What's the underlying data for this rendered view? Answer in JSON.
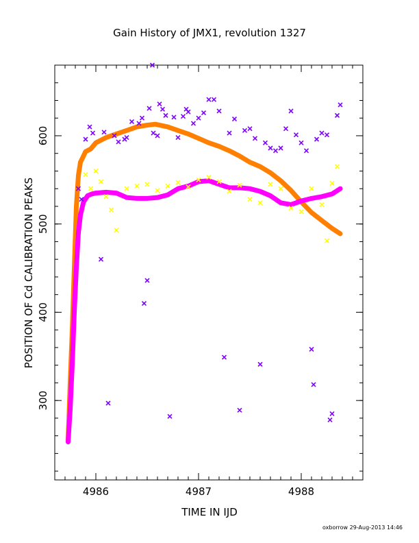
{
  "chart_data": {
    "type": "scatter",
    "title": "Gain History of JMX1, revolution 1327",
    "xlabel": "TIME IN IJD",
    "ylabel": "POSITION OF Cd CALIBRATION PEAKS",
    "xlim": [
      4985.6,
      4988.6
    ],
    "ylim": [
      210,
      680
    ],
    "x_ticks": [
      4986,
      4987,
      4988
    ],
    "x_tick_labels": [
      "4986",
      "4987",
      "4988"
    ],
    "y_ticks": [
      300,
      400,
      500,
      600
    ],
    "y_tick_labels": [
      "300",
      "400",
      "500",
      "600"
    ],
    "grid": false,
    "legend": "none",
    "series": [
      {
        "color": "#ff8000",
        "marker": "line",
        "points": [
          [
            4985.73,
            255
          ],
          [
            4985.75,
            320
          ],
          [
            4985.77,
            380
          ],
          [
            4985.79,
            450
          ],
          [
            4985.81,
            520
          ],
          [
            4985.83,
            555
          ],
          [
            4985.85,
            570
          ],
          [
            4985.9,
            582
          ],
          [
            4985.95,
            585
          ],
          [
            4986.0,
            592
          ],
          [
            4986.1,
            598
          ],
          [
            4986.2,
            602
          ],
          [
            4986.3,
            606
          ],
          [
            4986.4,
            610
          ],
          [
            4986.5,
            612
          ],
          [
            4986.58,
            613
          ],
          [
            4986.7,
            610
          ],
          [
            4986.8,
            606
          ],
          [
            4986.9,
            602
          ],
          [
            4987.0,
            597
          ],
          [
            4987.1,
            592
          ],
          [
            4987.2,
            588
          ],
          [
            4987.3,
            583
          ],
          [
            4987.4,
            577
          ],
          [
            4987.5,
            570
          ],
          [
            4987.6,
            565
          ],
          [
            4987.7,
            558
          ],
          [
            4987.8,
            549
          ],
          [
            4987.9,
            538
          ],
          [
            4988.0,
            525
          ],
          [
            4988.1,
            513
          ],
          [
            4988.2,
            504
          ],
          [
            4988.3,
            495
          ],
          [
            4988.38,
            489
          ]
        ]
      },
      {
        "color": "#ff00ff",
        "marker": "line",
        "points": [
          [
            4985.73,
            253
          ],
          [
            4985.75,
            290
          ],
          [
            4985.77,
            340
          ],
          [
            4985.79,
            400
          ],
          [
            4985.81,
            450
          ],
          [
            4985.83,
            490
          ],
          [
            4985.85,
            510
          ],
          [
            4985.88,
            525
          ],
          [
            4985.92,
            532
          ],
          [
            4985.96,
            534
          ],
          [
            4986.0,
            535
          ],
          [
            4986.1,
            536
          ],
          [
            4986.2,
            535
          ],
          [
            4986.3,
            530
          ],
          [
            4986.4,
            529
          ],
          [
            4986.5,
            529
          ],
          [
            4986.6,
            530
          ],
          [
            4986.7,
            533
          ],
          [
            4986.8,
            540
          ],
          [
            4986.9,
            543
          ],
          [
            4987.0,
            548
          ],
          [
            4987.1,
            549
          ],
          [
            4987.2,
            545
          ],
          [
            4987.3,
            541
          ],
          [
            4987.4,
            541
          ],
          [
            4987.5,
            540
          ],
          [
            4987.6,
            537
          ],
          [
            4987.7,
            532
          ],
          [
            4987.8,
            524
          ],
          [
            4987.9,
            522
          ],
          [
            4988.0,
            526
          ],
          [
            4988.1,
            529
          ],
          [
            4988.2,
            531
          ],
          [
            4988.3,
            534
          ],
          [
            4988.38,
            540
          ]
        ]
      },
      {
        "color": "#7f00ff",
        "marker": "x",
        "points": [
          [
            4985.83,
            540
          ],
          [
            4985.86,
            528
          ],
          [
            4985.9,
            596
          ],
          [
            4985.94,
            610
          ],
          [
            4985.97,
            603
          ],
          [
            4986.05,
            460
          ],
          [
            4986.08,
            604
          ],
          [
            4986.12,
            297
          ],
          [
            4986.18,
            600
          ],
          [
            4986.22,
            593
          ],
          [
            4986.28,
            596
          ],
          [
            4986.3,
            598
          ],
          [
            4986.35,
            616
          ],
          [
            4986.42,
            614
          ],
          [
            4986.45,
            620
          ],
          [
            4986.47,
            410
          ],
          [
            4986.5,
            436
          ],
          [
            4986.52,
            631
          ],
          [
            4986.56,
            603
          ],
          [
            4986.6,
            600
          ],
          [
            4986.62,
            636
          ],
          [
            4986.65,
            630
          ],
          [
            4986.68,
            623
          ],
          [
            4986.72,
            282
          ],
          [
            4986.76,
            621
          ],
          [
            4986.8,
            598
          ],
          [
            4986.85,
            622
          ],
          [
            4986.88,
            630
          ],
          [
            4986.9,
            627
          ],
          [
            4986.95,
            614
          ],
          [
            4987.0,
            620
          ],
          [
            4987.05,
            626
          ],
          [
            4987.1,
            641
          ],
          [
            4987.15,
            641
          ],
          [
            4987.2,
            628
          ],
          [
            4987.25,
            349
          ],
          [
            4987.3,
            603
          ],
          [
            4987.35,
            619
          ],
          [
            4987.4,
            289
          ],
          [
            4987.45,
            606
          ],
          [
            4987.5,
            608
          ],
          [
            4987.55,
            597
          ],
          [
            4987.6,
            341
          ],
          [
            4987.65,
            592
          ],
          [
            4987.7,
            586
          ],
          [
            4987.75,
            583
          ],
          [
            4987.8,
            586
          ],
          [
            4987.85,
            608
          ],
          [
            4987.9,
            628
          ],
          [
            4987.95,
            601
          ],
          [
            4988.0,
            592
          ],
          [
            4988.05,
            583
          ],
          [
            4988.1,
            358
          ],
          [
            4988.12,
            318
          ],
          [
            4988.15,
            596
          ],
          [
            4988.2,
            603
          ],
          [
            4988.25,
            601
          ],
          [
            4988.28,
            278
          ],
          [
            4988.3,
            285
          ],
          [
            4988.35,
            623
          ],
          [
            4988.38,
            635
          ]
        ]
      },
      {
        "color": "#ffff00",
        "marker": "x",
        "points": [
          [
            4985.9,
            556
          ],
          [
            4985.95,
            540
          ],
          [
            4986.0,
            560
          ],
          [
            4986.05,
            548
          ],
          [
            4986.1,
            531
          ],
          [
            4986.15,
            516
          ],
          [
            4986.2,
            493
          ],
          [
            4986.3,
            540
          ],
          [
            4986.4,
            543
          ],
          [
            4986.5,
            545
          ],
          [
            4986.6,
            538
          ],
          [
            4986.7,
            543
          ],
          [
            4986.8,
            547
          ],
          [
            4986.9,
            542
          ],
          [
            4987.0,
            550
          ],
          [
            4987.1,
            553
          ],
          [
            4987.2,
            548
          ],
          [
            4987.3,
            537
          ],
          [
            4987.4,
            544
          ],
          [
            4987.5,
            528
          ],
          [
            4987.6,
            524
          ],
          [
            4987.7,
            545
          ],
          [
            4987.8,
            540
          ],
          [
            4987.9,
            518
          ],
          [
            4988.0,
            514
          ],
          [
            4988.1,
            540
          ],
          [
            4988.2,
            522
          ],
          [
            4988.25,
            481
          ],
          [
            4988.3,
            546
          ],
          [
            4988.35,
            565
          ]
        ]
      },
      {
        "color": "#7f00ff",
        "marker": "x",
        "points": [
          [
            4986.55,
            680
          ]
        ]
      }
    ]
  },
  "footer": {
    "credit": "oxborrow 29-Aug-2013 14:46"
  }
}
